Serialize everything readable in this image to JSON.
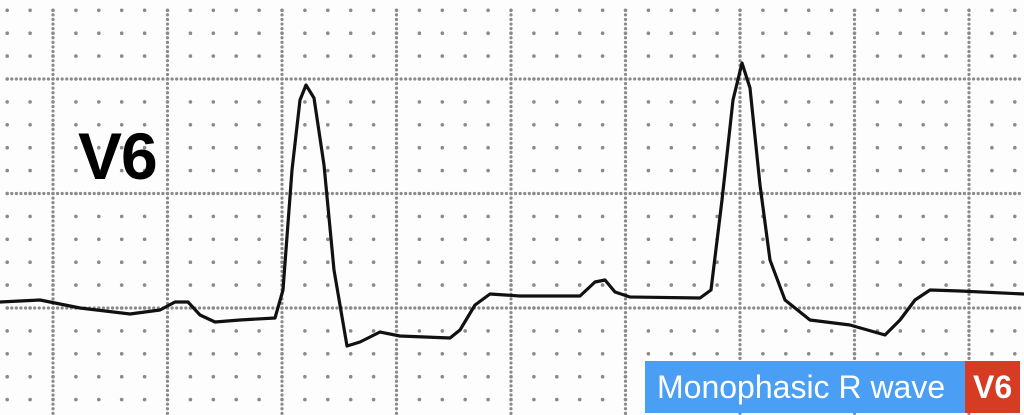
{
  "lead_label": "V6",
  "caption": {
    "text": "Monophasic R wave",
    "lead": "V6",
    "text_bg": "#4a9ff5",
    "lead_bg": "#d63b24"
  },
  "colors": {
    "grid_dot": "#8a8a8a",
    "trace": "#111111",
    "paper": "#fdfdfd"
  }
}
